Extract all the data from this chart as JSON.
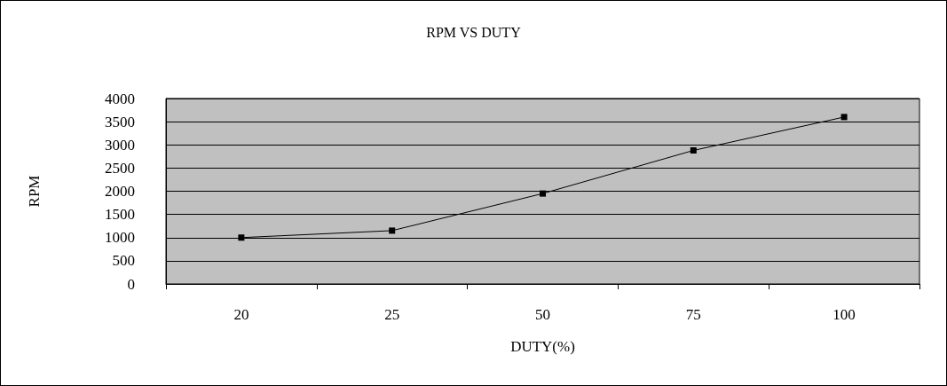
{
  "chart_data": {
    "type": "line",
    "title": "RPM VS DUTY",
    "xlabel": "DUTY(%)",
    "ylabel": "RPM",
    "categories": [
      "20",
      "25",
      "50",
      "75",
      "100"
    ],
    "series": [
      {
        "color": "#000000",
        "values": [
          1000,
          1150,
          1950,
          2880,
          3600
        ]
      }
    ],
    "ylim": [
      0,
      4000
    ],
    "yticks": [
      0,
      500,
      1000,
      1500,
      2000,
      2500,
      3000,
      3500,
      4000
    ],
    "grid": "y",
    "marker": "square",
    "line_style": "solid"
  }
}
